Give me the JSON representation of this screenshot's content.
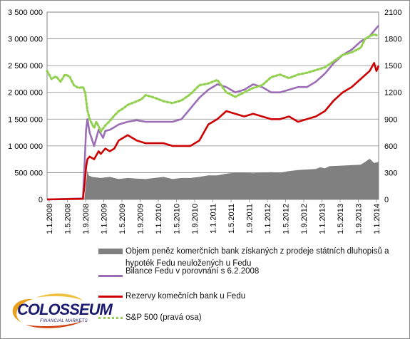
{
  "chart_data": {
    "type": "line",
    "title": "",
    "y_left": {
      "min": 0,
      "max": 3500000,
      "ticks": [
        "0",
        "500 000",
        "1 000 000",
        "1 500 000",
        "2 000 000",
        "2 500 000",
        "3 000 000",
        "3 500 000"
      ]
    },
    "y_right": {
      "min": 0,
      "max": 2100,
      "ticks": [
        "0",
        "300",
        "600",
        "900",
        "1200",
        "1500",
        "1800",
        "2100"
      ]
    },
    "x_ticks": [
      "1.1.2008",
      "1.5.2008",
      "1.9.2008",
      "1.1.2009",
      "1.5.2009",
      "1.9.2009",
      "1.1.2010",
      "1.5.2010",
      "1.9.2010",
      "1.1.2011",
      "1.5.2011",
      "1.9.2011",
      "1.1.2012",
      "1.5.2012",
      "1.9.2012",
      "1.1.2013",
      "1.5.2013",
      "1.9.2013",
      "1.1.2014"
    ],
    "grid": true,
    "legend_position": "bottom",
    "series": [
      {
        "name": "Objem peněz komerčních bank získaných z prodeje státních dluhopisů a hypoték Fedu neuložených u Fedu",
        "type": "area",
        "axis": "left",
        "color": "#808080",
        "x": [
          0,
          8.3,
          8.7,
          9.0,
          9.3,
          10,
          12,
          14,
          16,
          18,
          20,
          22,
          24,
          26,
          28,
          30,
          32,
          34,
          36,
          38,
          40,
          42,
          44,
          46,
          48,
          50,
          52,
          54,
          56,
          60,
          61,
          62,
          63,
          70,
          71,
          72,
          73,
          74
        ],
        "values": [
          0,
          0,
          300000,
          550000,
          450000,
          420000,
          400000,
          420000,
          380000,
          400000,
          390000,
          380000,
          400000,
          420000,
          380000,
          400000,
          400000,
          420000,
          450000,
          450000,
          480000,
          500000,
          500000,
          490000,
          500000,
          510000,
          500000,
          530000,
          550000,
          570000,
          600000,
          580000,
          620000,
          650000,
          700000,
          760000,
          680000,
          700000
        ]
      },
      {
        "name": "Bilance Fedu v porovnání s 6.2.2008",
        "type": "line",
        "axis": "left",
        "color": "#9b6db5",
        "x": [
          0,
          8.0,
          8.4,
          8.7,
          9.0,
          9.5,
          10.5,
          11.5,
          12.5,
          13,
          14,
          15,
          16,
          18,
          20,
          22,
          24,
          26,
          28,
          30,
          32,
          34,
          36,
          38,
          40,
          41,
          42,
          44,
          46,
          48,
          50,
          52,
          54,
          56,
          58,
          60,
          62,
          64,
          66,
          68,
          70,
          72,
          73,
          74
        ],
        "values": [
          0,
          20000,
          700000,
          1300000,
          1500000,
          1250000,
          1000000,
          1300000,
          1150000,
          1280000,
          1300000,
          1350000,
          1400000,
          1450000,
          1480000,
          1450000,
          1450000,
          1450000,
          1450000,
          1500000,
          1700000,
          1900000,
          2050000,
          2150000,
          2100000,
          2050000,
          2000000,
          2050000,
          2150000,
          2100000,
          2000000,
          2000000,
          2050000,
          2100000,
          2100000,
          2200000,
          2350000,
          2550000,
          2700000,
          2800000,
          2950000,
          3050000,
          3150000,
          3250000
        ]
      },
      {
        "name": "Rezervy komečních bank u Fedu",
        "type": "line",
        "axis": "left",
        "color": "#cc0000",
        "x": [
          0,
          8.0,
          8.4,
          8.7,
          9.0,
          9.5,
          10.5,
          11.5,
          12,
          13,
          14,
          15,
          16,
          18,
          20,
          22,
          24,
          26,
          28,
          30,
          32,
          34,
          36,
          38,
          40,
          42,
          44,
          46,
          48,
          50,
          52,
          54,
          56,
          58,
          60,
          62,
          64,
          66,
          68,
          70,
          72,
          73,
          73.5,
          74
        ],
        "values": [
          0,
          10000,
          300000,
          600000,
          750000,
          800000,
          750000,
          900000,
          850000,
          950000,
          900000,
          950000,
          1100000,
          1200000,
          1100000,
          1050000,
          1050000,
          1050000,
          1000000,
          1000000,
          1000000,
          1100000,
          1400000,
          1500000,
          1650000,
          1600000,
          1550000,
          1600000,
          1550000,
          1500000,
          1500000,
          1550000,
          1450000,
          1500000,
          1550000,
          1650000,
          1850000,
          2000000,
          2100000,
          2250000,
          2400000,
          2550000,
          2400000,
          2500000
        ]
      },
      {
        "name": "S&P 500 (pravá osa)",
        "type": "dotted-line",
        "axis": "right",
        "color": "#92d050",
        "x": [
          0,
          1,
          2,
          3,
          4,
          5,
          6,
          7,
          8,
          8.5,
          9,
          9.5,
          10,
          10.5,
          11,
          11.5,
          12,
          13,
          14,
          15,
          16,
          17,
          18,
          19,
          20,
          21,
          22,
          24,
          26,
          28,
          30,
          32,
          34,
          36,
          38,
          40,
          42,
          44,
          46,
          48,
          50,
          52,
          54,
          56,
          58,
          60,
          62,
          64,
          66,
          68,
          70,
          71,
          72,
          73,
          74
        ],
        "values": [
          1440,
          1350,
          1380,
          1320,
          1400,
          1380,
          1280,
          1250,
          1260,
          1200,
          1000,
          900,
          850,
          800,
          870,
          820,
          760,
          830,
          880,
          940,
          990,
          1020,
          1060,
          1080,
          1100,
          1120,
          1170,
          1140,
          1100,
          1080,
          1110,
          1180,
          1280,
          1300,
          1340,
          1200,
          1150,
          1200,
          1250,
          1280,
          1370,
          1400,
          1360,
          1400,
          1420,
          1450,
          1480,
          1550,
          1620,
          1650,
          1700,
          1800,
          1830,
          1850,
          1830
        ]
      }
    ]
  },
  "logo": {
    "word": "COLOSSEUM",
    "sub": "FINANCIAL MARKETS"
  }
}
